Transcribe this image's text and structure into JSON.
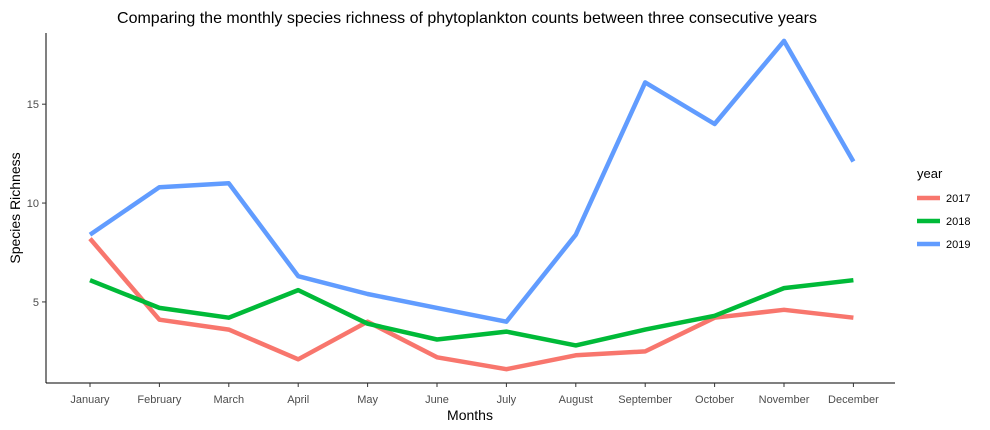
{
  "chart_data": {
    "type": "line",
    "title": "Comparing the monthly species richness of phytoplankton counts between three consecutive years",
    "xlabel": "Months",
    "ylabel": "Species Richness",
    "categories": [
      "January",
      "February",
      "March",
      "April",
      "May",
      "June",
      "July",
      "August",
      "September",
      "October",
      "November",
      "December"
    ],
    "yticks": [
      5,
      10,
      15
    ],
    "ylim": [
      0.9,
      18.6
    ],
    "grid": false,
    "legend": {
      "title": "year",
      "position": "right"
    },
    "series": [
      {
        "name": "2017",
        "color": "#F8766D",
        "values": [
          8.2,
          4.1,
          3.6,
          2.1,
          4.0,
          2.2,
          1.6,
          2.3,
          2.5,
          4.2,
          4.6,
          4.2
        ]
      },
      {
        "name": "2018",
        "color": "#00BA38",
        "values": [
          6.1,
          4.7,
          4.2,
          5.6,
          3.9,
          3.1,
          3.5,
          2.8,
          3.6,
          4.3,
          5.7,
          6.1
        ]
      },
      {
        "name": "2019",
        "color": "#619CFF",
        "values": [
          8.4,
          10.8,
          11.0,
          6.3,
          5.4,
          4.7,
          4.0,
          8.4,
          16.1,
          14.0,
          18.2,
          12.1
        ]
      }
    ]
  }
}
